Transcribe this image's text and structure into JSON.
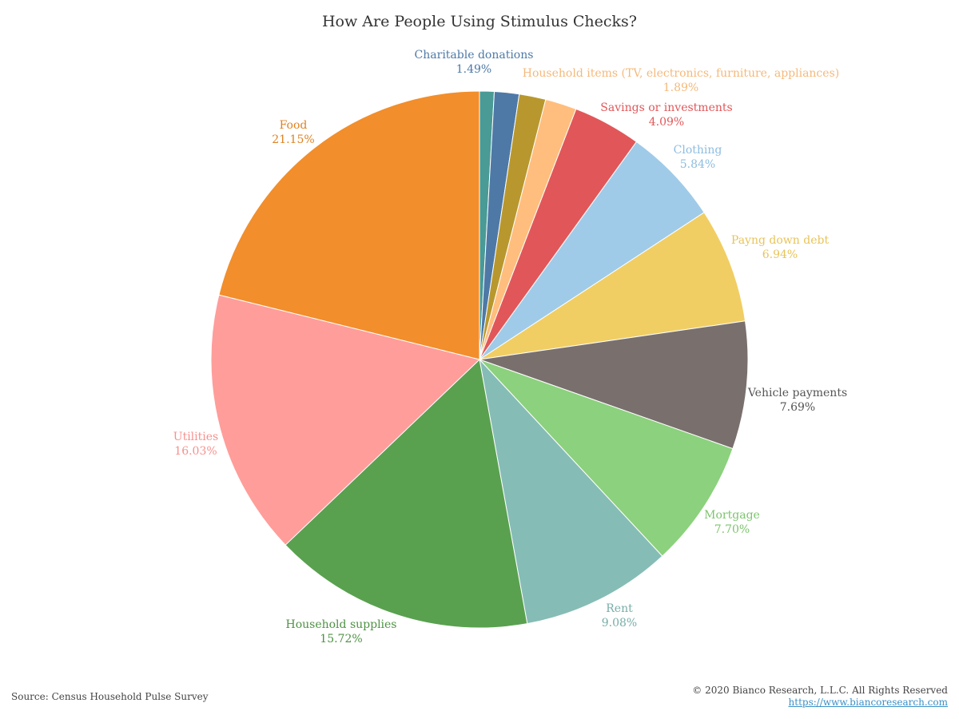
{
  "chart_data": {
    "type": "pie",
    "title": "How Are People Using Stimulus Checks?",
    "slices": [
      {
        "label": "",
        "value": 0.88,
        "display": "",
        "color": "#4a9a95"
      },
      {
        "label": "Charitable donations",
        "value": 1.49,
        "display": "1.49%",
        "color": "#4e79a7"
      },
      {
        "label": "",
        "value": 1.6,
        "display": "",
        "color": "#b8982e"
      },
      {
        "label": "Household items (TV, electronics, furniture, appliances)",
        "value": 1.89,
        "display": "1.89%",
        "color": "#ffbe7d"
      },
      {
        "label": "Savings or investments",
        "value": 4.09,
        "display": "4.09%",
        "color": "#e15759"
      },
      {
        "label": "Clothing",
        "value": 5.84,
        "display": "5.84%",
        "color": "#a0cbe8"
      },
      {
        "label": "Payng down debt",
        "value": 6.94,
        "display": "6.94%",
        "color": "#f1ce63"
      },
      {
        "label": "Vehicle payments",
        "value": 7.69,
        "display": "7.69%",
        "color": "#79706e"
      },
      {
        "label": "Mortgage",
        "value": 7.7,
        "display": "7.70%",
        "color": "#8cd17d"
      },
      {
        "label": "Rent",
        "value": 9.08,
        "display": "9.08%",
        "color": "#86bcb6"
      },
      {
        "label": "Household supplies",
        "value": 15.72,
        "display": "15.72%",
        "color": "#59a14f"
      },
      {
        "label": "Utilities",
        "value": 16.03,
        "display": "16.03%",
        "color": "#ff9d9a"
      },
      {
        "label": "Food",
        "value": 21.15,
        "display": "21.15%",
        "color": "#f28e2b"
      }
    ],
    "label_colors": {
      "Charitable donations": "#4e79a7",
      "Household items (TV, electronics, furniture, appliances)": "#f5b97a",
      "Savings or investments": "#e15759",
      "Clothing": "#8dbde0",
      "Payng down debt": "#e8c45a",
      "Vehicle payments": "#555555",
      "Mortgage": "#7cc46c",
      "Rent": "#78aea8",
      "Household supplies": "#4e9244",
      "Utilities": "#f7908d",
      "Food": "#e0821f"
    }
  },
  "footer": {
    "source": "Source: Census Household Pulse Survey",
    "copyright": "© 2020 Bianco Research, L.L.C. All Rights Reserved",
    "link": "https://www.biancoresearch.com"
  }
}
